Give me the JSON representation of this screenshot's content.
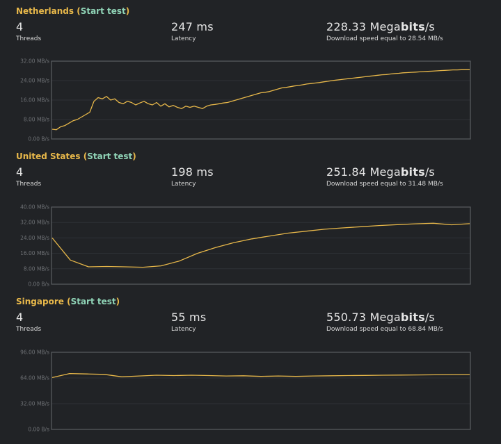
{
  "colors": {
    "background": "#212326",
    "title": "#e8b84a",
    "link": "#8fd3b6",
    "line": "#e8b84a",
    "grid": "#2f3236",
    "border": "#5a5d61"
  },
  "sections": [
    {
      "location": "Netherlands",
      "link_label": "Start test",
      "threads_value": "4",
      "threads_label": "Threads",
      "latency_value": "247 ms",
      "latency_label": "Latency",
      "speed_num": "228.33",
      "speed_mega": "Mega",
      "speed_bits": "bits",
      "speed_unit_tail": "/s",
      "speed_sub": "Download speed equal to 28.54 MB/s"
    },
    {
      "location": "United States",
      "link_label": "Start test",
      "threads_value": "4",
      "threads_label": "Threads",
      "latency_value": "198 ms",
      "latency_label": "Latency",
      "speed_num": "251.84",
      "speed_mega": "Mega",
      "speed_bits": "bits",
      "speed_unit_tail": "/s",
      "speed_sub": "Download speed equal to 31.48 MB/s"
    },
    {
      "location": "Singapore",
      "link_label": "Start test",
      "threads_value": "4",
      "threads_label": "Threads",
      "latency_value": "55 ms",
      "latency_label": "Latency",
      "speed_num": "550.73",
      "speed_mega": "Mega",
      "speed_bits": "bits",
      "speed_unit_tail": "/s",
      "speed_sub": "Download speed equal to 68.84 MB/s"
    }
  ],
  "chart_data": [
    {
      "type": "line",
      "title": "",
      "ylim": [
        0,
        32
      ],
      "y_ticks": [
        0,
        8,
        16,
        24,
        32
      ],
      "y_tick_labels": [
        "0.00 B/s",
        "8.00 MB/s",
        "16.00 MB/s",
        "24.00 MB/s",
        "32.00 MB/s"
      ],
      "grid": true,
      "series": [
        {
          "values": [
            4.0,
            3.8,
            5.0,
            5.5,
            6.5,
            7.5,
            8.0,
            9.0,
            10.0,
            11.0,
            15.5,
            17.0,
            16.5,
            17.5,
            16.0,
            16.5,
            15.0,
            14.5,
            15.5,
            15.0,
            14.0,
            14.8,
            15.5,
            14.5,
            14.0,
            15.0,
            13.5,
            14.5,
            13.2,
            13.8,
            13.0,
            12.5,
            13.5,
            13.0,
            13.5,
            13.0,
            12.5,
            13.5,
            14.0,
            14.2,
            14.5,
            14.8,
            15.0,
            15.5,
            16.0,
            16.5,
            17.0,
            17.5,
            18.0,
            18.5,
            19.0,
            19.2,
            19.5,
            20.0,
            20.5,
            21.0,
            21.2,
            21.5,
            21.8,
            22.0,
            22.3,
            22.6,
            22.8,
            23.0,
            23.2,
            23.5,
            23.7,
            24.0,
            24.2,
            24.4,
            24.6,
            24.8,
            25.0,
            25.2,
            25.4,
            25.6,
            25.8,
            26.0,
            26.2,
            26.4,
            26.5,
            26.7,
            26.9,
            27.0,
            27.2,
            27.3,
            27.4,
            27.5,
            27.6,
            27.7,
            27.8,
            27.9,
            28.0,
            28.1,
            28.2,
            28.3,
            28.4,
            28.4,
            28.5,
            28.5,
            28.5
          ]
        }
      ]
    },
    {
      "type": "line",
      "title": "",
      "ylim": [
        0,
        40
      ],
      "y_ticks": [
        0,
        8,
        16,
        24,
        32,
        40
      ],
      "y_tick_labels": [
        "0.00 B/s",
        "8.00 MB/s",
        "16.00 MB/s",
        "24.00 MB/s",
        "32.00 MB/s",
        "40.00 MB/s"
      ],
      "grid": true,
      "series": [
        {
          "values": [
            24.0,
            12.5,
            9.0,
            9.2,
            9.0,
            8.8,
            9.5,
            12.0,
            16.0,
            19.0,
            21.5,
            23.5,
            25.0,
            26.5,
            27.5,
            28.5,
            29.2,
            29.8,
            30.4,
            30.9,
            31.3,
            31.6,
            30.8,
            31.4
          ]
        }
      ]
    },
    {
      "type": "line",
      "title": "",
      "ylim": [
        0,
        96
      ],
      "y_ticks": [
        0,
        32,
        64,
        96
      ],
      "y_tick_labels": [
        "0.00 B/s",
        "32.00 MB/s",
        "64.00 MB/s",
        "96.00 MB/s"
      ],
      "grid": true,
      "series": [
        {
          "values": [
            64.5,
            69.5,
            69.0,
            68.5,
            65.5,
            66.5,
            67.5,
            67.0,
            67.5,
            67.0,
            66.5,
            66.8,
            66.0,
            66.5,
            66.0,
            66.5,
            66.8,
            67.0,
            67.2,
            67.5,
            67.6,
            67.8,
            68.0,
            68.2,
            68.3
          ]
        }
      ]
    }
  ]
}
